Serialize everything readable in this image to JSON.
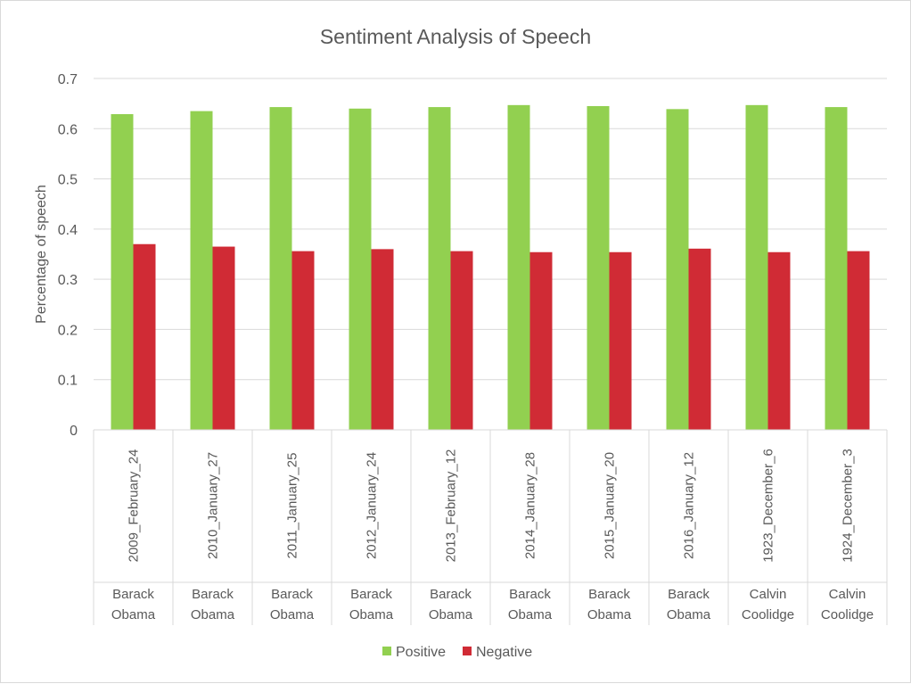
{
  "chart_data": {
    "type": "bar",
    "title": "Sentiment Analysis of Speech",
    "xlabel": "",
    "ylabel": "Percentage of speech",
    "ylim": [
      0,
      0.7
    ],
    "yticks": [
      "0",
      "0.1",
      "0.2",
      "0.3",
      "0.4",
      "0.5",
      "0.6",
      "0.7"
    ],
    "grid": true,
    "legend_position": "bottom",
    "categories": [
      {
        "date": "2009_February_24",
        "group": [
          "Barack",
          "Obama"
        ]
      },
      {
        "date": "2010_January_27",
        "group": [
          "Barack",
          "Obama"
        ]
      },
      {
        "date": "2011_January_25",
        "group": [
          "Barack",
          "Obama"
        ]
      },
      {
        "date": "2012_January_24",
        "group": [
          "Barack",
          "Obama"
        ]
      },
      {
        "date": "2013_February_12",
        "group": [
          "Barack",
          "Obama"
        ]
      },
      {
        "date": "2014_January_28",
        "group": [
          "Barack",
          "Obama"
        ]
      },
      {
        "date": "2015_January_20",
        "group": [
          "Barack",
          "Obama"
        ]
      },
      {
        "date": "2016_January_12",
        "group": [
          "Barack",
          "Obama"
        ]
      },
      {
        "date": "1923_December_6",
        "group": [
          "Calvin",
          "Coolidge"
        ]
      },
      {
        "date": "1924_December_3",
        "group": [
          "Calvin",
          "Coolidge"
        ]
      }
    ],
    "series": [
      {
        "name": "Positive",
        "color": "#92d050",
        "values": [
          0.629,
          0.635,
          0.643,
          0.64,
          0.643,
          0.647,
          0.645,
          0.639,
          0.647,
          0.643
        ]
      },
      {
        "name": "Negative",
        "color": "#d02b35",
        "values": [
          0.37,
          0.365,
          0.356,
          0.36,
          0.356,
          0.354,
          0.354,
          0.361,
          0.354,
          0.356
        ]
      }
    ]
  }
}
